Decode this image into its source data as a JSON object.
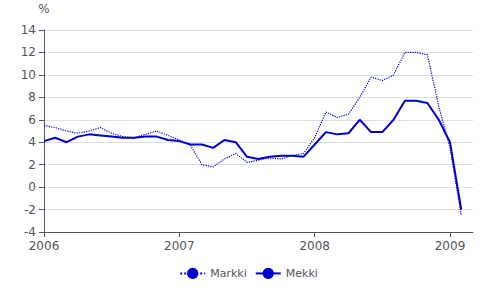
{
  "chart_data": {
    "type": "line",
    "ylabel": "%",
    "x": [
      2006.0,
      2006.083,
      2006.167,
      2006.25,
      2006.333,
      2006.417,
      2006.5,
      2006.583,
      2006.667,
      2006.75,
      2006.833,
      2006.917,
      2007.0,
      2007.083,
      2007.167,
      2007.25,
      2007.333,
      2007.417,
      2007.5,
      2007.583,
      2007.667,
      2007.75,
      2007.833,
      2007.917,
      2008.0,
      2008.083,
      2008.167,
      2008.25,
      2008.333,
      2008.417,
      2008.5,
      2008.583,
      2008.667,
      2008.75,
      2008.833,
      2008.917,
      2009.0,
      2009.083
    ],
    "series": [
      {
        "name": "Markki",
        "color": "#0000cc",
        "line_style": "dotted",
        "values": [
          5.5,
          5.3,
          5.0,
          4.8,
          5.0,
          5.3,
          4.8,
          4.5,
          4.4,
          4.7,
          5.0,
          4.6,
          4.2,
          3.7,
          2.0,
          1.8,
          2.5,
          3.0,
          2.2,
          2.4,
          2.6,
          2.5,
          2.8,
          3.0,
          4.4,
          6.7,
          6.2,
          6.5,
          8.0,
          9.8,
          9.5,
          10.0,
          12.0,
          12.0,
          11.8,
          7.2,
          3.5,
          -2.5
        ]
      },
      {
        "name": "Mekki",
        "color": "#0000cc",
        "line_style": "solid",
        "values": [
          4.1,
          4.4,
          4.0,
          4.5,
          4.7,
          4.6,
          4.5,
          4.4,
          4.4,
          4.5,
          4.5,
          4.2,
          4.1,
          3.8,
          3.8,
          3.5,
          4.2,
          4.0,
          2.7,
          2.5,
          2.7,
          2.8,
          2.8,
          2.7,
          3.8,
          4.9,
          4.7,
          4.8,
          6.0,
          4.9,
          4.9,
          6.0,
          7.7,
          7.7,
          7.5,
          6.0,
          4.0,
          -2.0
        ]
      }
    ],
    "xlim": [
      2006.0,
      2009.17
    ],
    "xticks": [
      2006,
      2007,
      2008,
      2009
    ],
    "ylim": [
      -4,
      14
    ],
    "yticks": [
      -4,
      -2,
      0,
      2,
      4,
      6,
      8,
      10,
      12,
      14
    ],
    "grid": true,
    "legend": "bottom"
  }
}
